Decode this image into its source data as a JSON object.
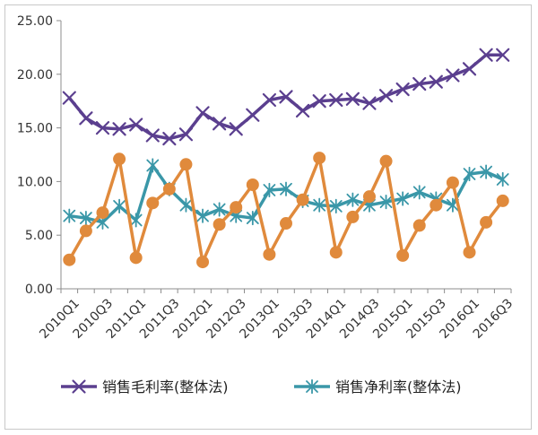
{
  "chart_data": {
    "type": "line",
    "categories": [
      "2010Q1",
      "2010Q2",
      "2010Q3",
      "2010Q4",
      "2011Q1",
      "2011Q2",
      "2011Q3",
      "2011Q4",
      "2012Q1",
      "2012Q2",
      "2012Q3",
      "2012Q4",
      "2013Q1",
      "2013Q2",
      "2013Q3",
      "2013Q4",
      "2014Q1",
      "2014Q2",
      "2014Q3",
      "2014Q4",
      "2015Q1",
      "2015Q2",
      "2015Q3",
      "2015Q4",
      "2016Q1",
      "2016Q2",
      "2016Q3"
    ],
    "x_tick_labels": [
      "2010Q1",
      "2010Q3",
      "2011Q1",
      "2011Q3",
      "2012Q1",
      "2012Q3",
      "2013Q1",
      "2013Q3",
      "2014Q1",
      "2014Q3",
      "2015Q1",
      "2015Q3",
      "2016Q1",
      "2016Q3"
    ],
    "y_tick_labels": [
      "0.00",
      "5.00",
      "10.00",
      "15.00",
      "20.00",
      "25.00"
    ],
    "ylim": [
      0,
      25
    ],
    "grid": false,
    "legend_position": "bottom",
    "series": [
      {
        "name": "销售毛利率(整体法)",
        "color": "#5b3f8f",
        "marker": "x",
        "values": [
          17.8,
          15.9,
          15.0,
          14.9,
          15.3,
          14.3,
          14.0,
          14.4,
          16.4,
          15.4,
          14.9,
          16.2,
          17.6,
          17.9,
          16.6,
          17.5,
          17.6,
          17.7,
          17.3,
          18.0,
          18.6,
          19.1,
          19.3,
          19.9,
          20.5,
          21.8,
          21.8
        ]
      },
      {
        "name": "销售净利率(整体法)",
        "color": "#3a97a8",
        "marker": "star",
        "values": [
          6.8,
          6.6,
          6.2,
          7.7,
          6.4,
          11.5,
          9.3,
          7.8,
          6.8,
          7.4,
          6.8,
          6.6,
          9.2,
          9.3,
          8.2,
          7.8,
          7.7,
          8.3,
          7.8,
          8.1,
          8.4,
          9.0,
          8.4,
          7.8,
          10.7,
          10.9,
          10.2
        ]
      },
      {
        "name": "",
        "color": "#e08a3c",
        "marker": "circle",
        "values": [
          2.7,
          5.4,
          7.1,
          12.1,
          2.9,
          8.0,
          9.3,
          11.6,
          2.5,
          6.0,
          7.6,
          9.7,
          3.2,
          6.1,
          8.3,
          12.2,
          3.4,
          6.7,
          8.6,
          11.9,
          3.1,
          5.9,
          7.8,
          9.9,
          3.4,
          6.2,
          8.2
        ]
      }
    ]
  }
}
